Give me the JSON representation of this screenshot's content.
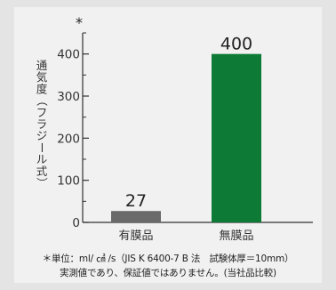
{
  "chart_data": {
    "type": "bar",
    "title": "",
    "asterisk": "*",
    "ylabel": "通気度（フラジール式）",
    "categories": [
      "有膜品",
      "無膜品"
    ],
    "values": [
      27,
      400
    ],
    "value_labels": [
      "27",
      "400"
    ],
    "bar_colors": [
      "#6a6a6a",
      "#0d7a35"
    ],
    "ylim": [
      0,
      450
    ],
    "yticks": [
      0,
      100,
      200,
      300,
      400
    ],
    "minor_tick_step": 50,
    "grid": false,
    "legend": "none"
  },
  "footnote": {
    "line1": "＊単位：ml/ ㎠ /s（JIS K 6400-7 B 法　試験体厚＝10mm）",
    "line2": "実測値であり、保証値ではありません。(当社品比較)"
  }
}
